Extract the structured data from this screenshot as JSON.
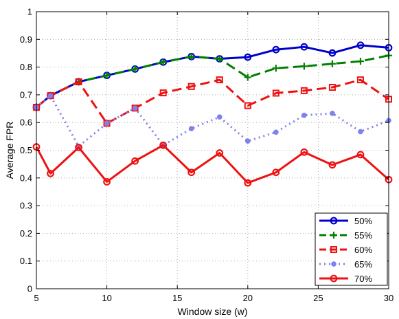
{
  "chart_data": {
    "type": "line",
    "title": "",
    "xlabel": "Window size (w)",
    "ylabel": "Average FPR",
    "xlim": [
      5,
      30
    ],
    "ylim": [
      0,
      1
    ],
    "x_ticks": [
      "5",
      "10",
      "15",
      "20",
      "25",
      "30"
    ],
    "y_ticks": [
      "0",
      "0.1",
      "0.2",
      "0.3",
      "0.4",
      "0.5",
      "0.6",
      "0.7",
      "0.8",
      "0.9",
      "1"
    ],
    "grid": true,
    "legend_position": "bottom-right",
    "x": [
      5,
      6,
      8,
      10,
      12,
      14,
      16,
      18,
      20,
      22,
      24,
      26,
      28,
      30
    ],
    "series": [
      {
        "name": "50%",
        "color": "#0000cc",
        "line": "solid",
        "marker": "circle",
        "values": [
          0.655,
          0.697,
          0.747,
          0.77,
          0.793,
          0.818,
          0.838,
          0.83,
          0.836,
          0.863,
          0.873,
          0.851,
          0.879,
          0.87
        ]
      },
      {
        "name": "55%",
        "color": "#008000",
        "line": "dashed",
        "marker": "plus",
        "values": [
          0.655,
          0.697,
          0.747,
          0.77,
          0.793,
          0.818,
          0.838,
          0.83,
          0.763,
          0.796,
          0.803,
          0.812,
          0.821,
          0.842
        ]
      },
      {
        "name": "60%",
        "color": "#ee1111",
        "line": "dashed",
        "marker": "square",
        "values": [
          0.655,
          0.697,
          0.747,
          0.597,
          0.652,
          0.707,
          0.73,
          0.754,
          0.661,
          0.706,
          0.715,
          0.727,
          0.754,
          0.684
        ]
      },
      {
        "name": "65%",
        "color": "#8080ee",
        "line": "dotted",
        "marker": "dot",
        "values": [
          0.655,
          0.697,
          0.514,
          0.597,
          0.652,
          0.518,
          0.578,
          0.62,
          0.533,
          0.565,
          0.626,
          0.633,
          0.567,
          0.607
        ]
      },
      {
        "name": "70%",
        "color": "#ee1111",
        "line": "solid",
        "marker": "circle",
        "values": [
          0.512,
          0.416,
          0.51,
          0.386,
          0.461,
          0.518,
          0.42,
          0.49,
          0.382,
          0.42,
          0.493,
          0.447,
          0.484,
          0.394
        ]
      }
    ]
  }
}
